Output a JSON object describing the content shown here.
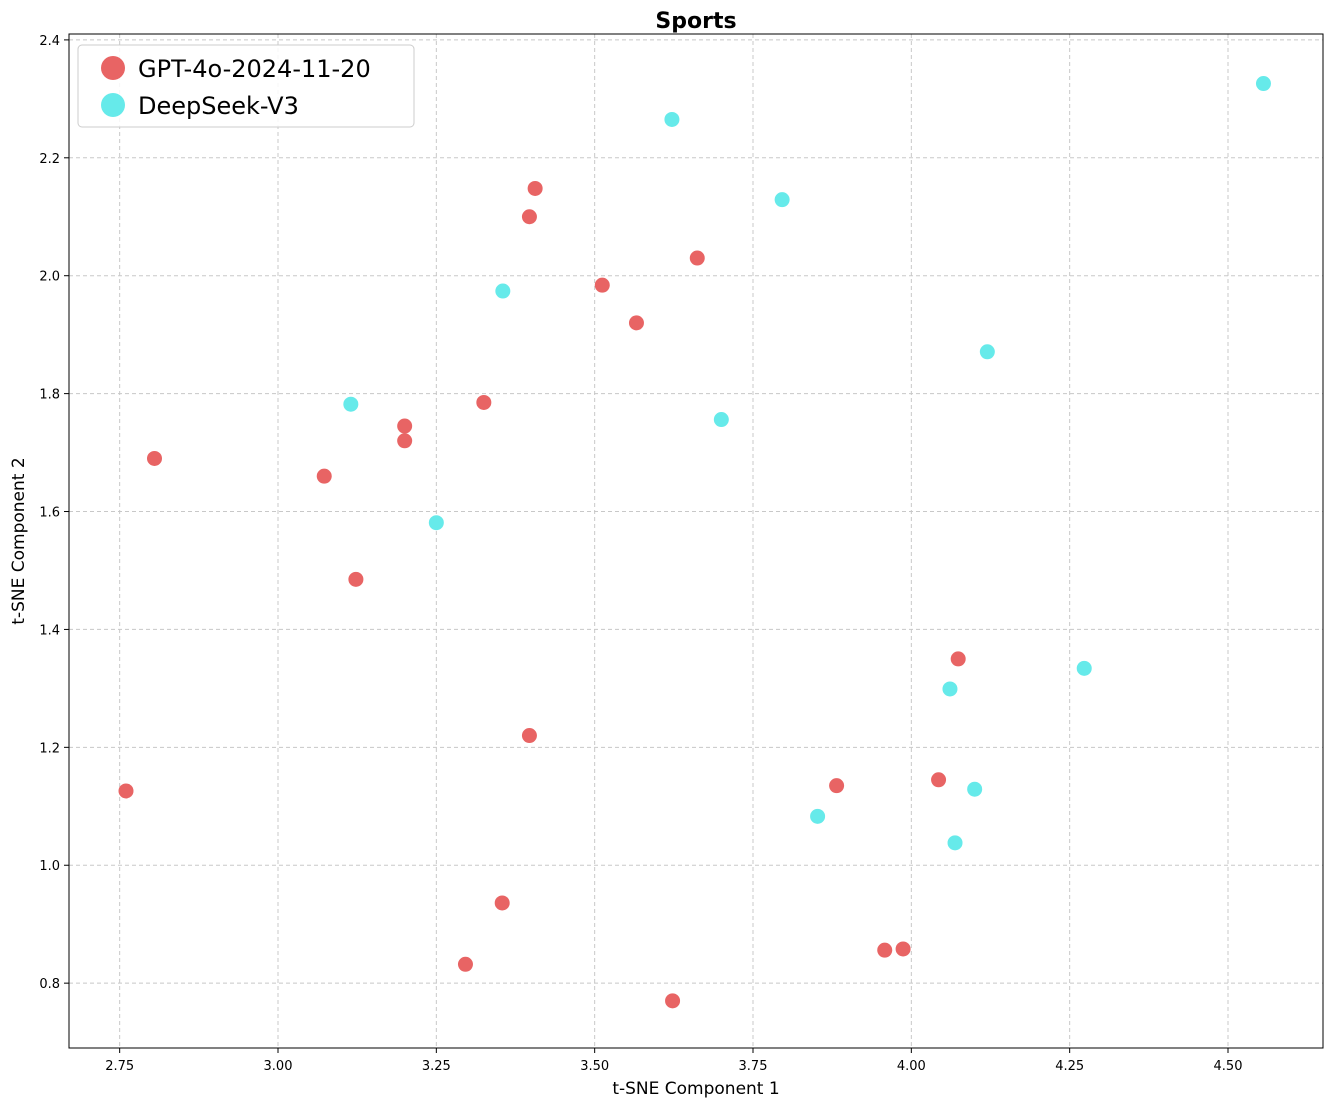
{
  "chart_data": {
    "type": "scatter",
    "title": "Sports",
    "xlabel": "t-SNE Component 1",
    "ylabel": "t-SNE Component 2",
    "xlim": [
      2.67,
      4.65
    ],
    "ylim": [
      0.69,
      2.41
    ],
    "xticks": [
      "2.75",
      "3.00",
      "3.25",
      "3.50",
      "3.75",
      "4.00",
      "4.25",
      "4.50"
    ],
    "yticks": [
      "0.8",
      "1.0",
      "1.2",
      "1.4",
      "1.6",
      "1.8",
      "2.0",
      "2.2",
      "2.4"
    ],
    "xtick_values": [
      2.75,
      3.0,
      3.25,
      3.5,
      3.75,
      4.0,
      4.25,
      4.5
    ],
    "ytick_values": [
      0.8,
      1.0,
      1.2,
      1.4,
      1.6,
      1.8,
      2.0,
      2.2,
      2.4
    ],
    "grid": true,
    "legend_position": "top-left",
    "series": [
      {
        "name": "GPT-4o-2024-11-20",
        "color": "#e86464",
        "points": [
          [
            2.76,
            1.126
          ],
          [
            2.805,
            1.69
          ],
          [
            3.073,
            1.66
          ],
          [
            3.123,
            1.485
          ],
          [
            3.2,
            1.745
          ],
          [
            3.2,
            1.72
          ],
          [
            3.296,
            0.832
          ],
          [
            3.325,
            1.785
          ],
          [
            3.354,
            0.936
          ],
          [
            3.397,
            2.1
          ],
          [
            3.397,
            1.22
          ],
          [
            3.406,
            2.148
          ],
          [
            3.512,
            1.984
          ],
          [
            3.566,
            1.92
          ],
          [
            3.623,
            0.77
          ],
          [
            3.662,
            2.03
          ],
          [
            3.882,
            1.135
          ],
          [
            3.958,
            0.856
          ],
          [
            3.987,
            0.858
          ],
          [
            4.043,
            1.145
          ],
          [
            4.074,
            1.35
          ]
        ]
      },
      {
        "name": "DeepSeek-V3",
        "color": "#66eaea",
        "points": [
          [
            3.115,
            1.782
          ],
          [
            3.25,
            1.581
          ],
          [
            3.355,
            1.974
          ],
          [
            3.622,
            2.265
          ],
          [
            3.7,
            1.756
          ],
          [
            3.796,
            2.129
          ],
          [
            3.852,
            1.083
          ],
          [
            4.061,
            1.299
          ],
          [
            4.069,
            1.038
          ],
          [
            4.1,
            1.129
          ],
          [
            4.12,
            1.871
          ],
          [
            4.273,
            1.334
          ],
          [
            4.556,
            2.326
          ]
        ]
      }
    ]
  }
}
